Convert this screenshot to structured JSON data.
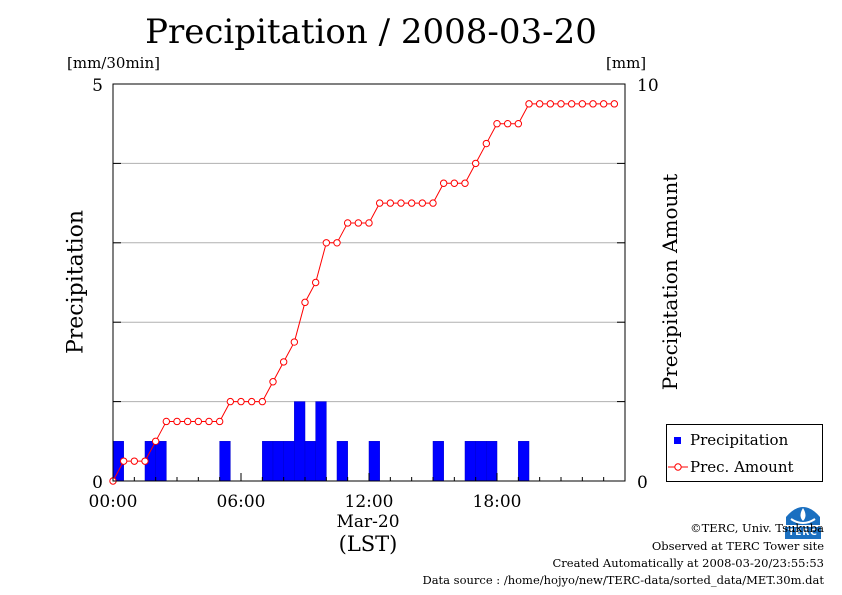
{
  "chart_data": {
    "type": "bar+line",
    "title": "Precipitation / 2008-03-20",
    "left_axis": {
      "label": "Precipitation",
      "unit": "[mm/30min]",
      "ylim": [
        0,
        5
      ],
      "tick_labels": [
        "0",
        "5"
      ]
    },
    "right_axis": {
      "label": "Precipitation Amount",
      "unit": "[mm]",
      "ylim": [
        0,
        10
      ],
      "tick_labels": [
        "0",
        "10"
      ]
    },
    "x_axis": {
      "tick_labels": [
        "00:00",
        "06:00",
        "12:00",
        "18:00"
      ],
      "date_label": "Mar-20",
      "timezone_label": "(LST)",
      "xlim_hours": [
        0,
        24
      ]
    },
    "grid": true,
    "legend": {
      "placement": "bottom-right",
      "entries": [
        "Precipitation",
        "Prec. Amount"
      ]
    },
    "series": [
      {
        "name": "Precipitation",
        "type": "bar",
        "color": "#0000ff",
        "x_hours": [
          0.0,
          0.5,
          1.0,
          1.5,
          2.0,
          2.5,
          3.0,
          3.5,
          4.0,
          4.5,
          5.0,
          5.5,
          6.0,
          6.5,
          7.0,
          7.5,
          8.0,
          8.5,
          9.0,
          9.5,
          10.0,
          10.5,
          11.0,
          11.5,
          12.0,
          12.5,
          13.0,
          13.5,
          14.0,
          14.5,
          15.0,
          15.5,
          16.0,
          16.5,
          17.0,
          17.5,
          18.0,
          18.5,
          19.0,
          19.5,
          20.0,
          20.5,
          21.0,
          21.5,
          22.0,
          22.5,
          23.0,
          23.5
        ],
        "values": [
          0.5,
          0,
          0,
          0.5,
          0.5,
          0,
          0,
          0,
          0,
          0,
          0.5,
          0,
          0,
          0,
          0.5,
          0.5,
          0.5,
          1.0,
          0.5,
          1.0,
          0,
          0.5,
          0,
          0,
          0.5,
          0,
          0,
          0,
          0,
          0,
          0.5,
          0,
          0,
          0.5,
          0.5,
          0.5,
          0,
          0,
          0.5,
          0,
          0,
          0,
          0,
          0,
          0,
          0,
          0,
          0
        ]
      },
      {
        "name": "Prec. Amount",
        "type": "line",
        "color": "#ff0000",
        "x_hours": [
          0.0,
          0.5,
          1.0,
          1.5,
          2.0,
          2.5,
          3.0,
          3.5,
          4.0,
          4.5,
          5.0,
          5.5,
          6.0,
          6.5,
          7.0,
          7.5,
          8.0,
          8.5,
          9.0,
          9.5,
          10.0,
          10.5,
          11.0,
          11.5,
          12.0,
          12.5,
          13.0,
          13.5,
          14.0,
          14.5,
          15.0,
          15.5,
          16.0,
          16.5,
          17.0,
          17.5,
          18.0,
          18.5,
          19.0,
          19.5,
          20.0,
          20.5,
          21.0,
          21.5,
          22.0,
          22.5,
          23.0,
          23.5
        ],
        "values": [
          0,
          0.5,
          0.5,
          0.5,
          1.0,
          1.5,
          1.5,
          1.5,
          1.5,
          1.5,
          1.5,
          2.0,
          2.0,
          2.0,
          2.0,
          2.5,
          3.0,
          3.5,
          4.5,
          5.0,
          6.0,
          6.0,
          6.5,
          6.5,
          6.5,
          7.0,
          7.0,
          7.0,
          7.0,
          7.0,
          7.0,
          7.5,
          7.5,
          7.5,
          8.0,
          8.5,
          9.0,
          9.0,
          9.0,
          9.5,
          9.5,
          9.5,
          9.5,
          9.5,
          9.5,
          9.5,
          9.5,
          9.5
        ]
      }
    ]
  },
  "credits": {
    "copyright": "©TERC, Univ. Tsukuba",
    "site": "Observed at TERC Tower site",
    "created": "Created Automatically at 2008-03-20/23:55:53",
    "source": "Data source : /home/hojyo/new/TERC-data/sorted_data/MET.30m.dat"
  },
  "logo": {
    "name": "terc-logo",
    "text": "TERC"
  }
}
